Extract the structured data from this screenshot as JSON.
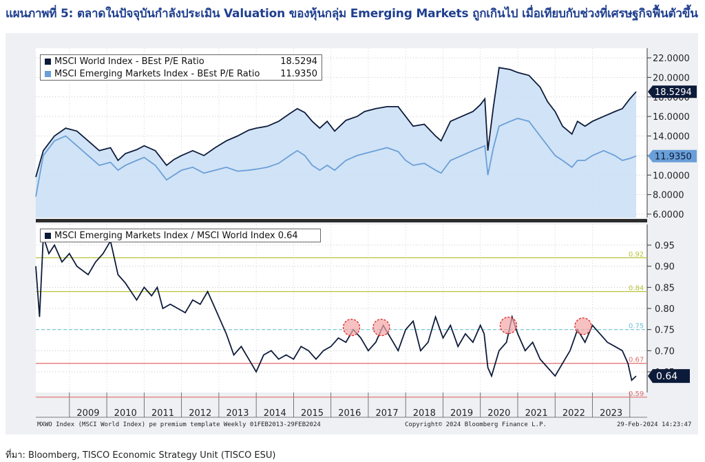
{
  "title": "แผนภาพที่ 5: ตลาดในปัจจุบันกำลังประเมิน Valuation ของหุ้นกลุ่ม Emerging Markets ถูกเกินไป เมื่อเทียบกับช่วงที่เศรษฐกิจฟื้นตัวขึ้น",
  "source": "ที่มา: Bloomberg, TISCO Economic Strategy Unit (TISCO ESU)",
  "footer": {
    "left": "MXWO Index (MSCI World Index) pe premium template  Weekly 01FEB2013-29FEB2024",
    "center": "Copyright© 2024 Bloomberg Finance L.P.",
    "right": "29-Feb-2024 14:23:47"
  },
  "colors": {
    "world": "#0d1b3a",
    "em": "#6a9fd8",
    "area": "#c9def5",
    "gold": "#b8c23a",
    "red": "#e06a6a",
    "teal": "#6ec0d8"
  },
  "chart_data": [
    {
      "type": "area",
      "legend": [
        {
          "name": "MSCI World Index - BEst P/E Ratio",
          "value": "18.5294"
        },
        {
          "name": "MSCI Emerging Markets Index - BEst P/E Ratio",
          "value": "11.9350"
        }
      ],
      "y_ticks": [
        "22.0000",
        "20.0000",
        "18.0000",
        "16.0000",
        "14.0000",
        "12.0000",
        "10.0000",
        "8.0000",
        "6.0000"
      ],
      "ylim": [
        6,
        22.5
      ],
      "xlim": [
        2008.1,
        2024.17
      ],
      "last_labels": {
        "world": "18.5294",
        "em": "11.9350"
      },
      "series": [
        {
          "name": "MSCI World Index - BEst P/E Ratio",
          "x": [
            2008.1,
            2008.3,
            2008.6,
            2008.9,
            2009.2,
            2009.5,
            2009.8,
            2010.1,
            2010.3,
            2010.5,
            2010.8,
            2011.0,
            2011.3,
            2011.6,
            2011.8,
            2012.0,
            2012.3,
            2012.6,
            2012.9,
            2013.2,
            2013.5,
            2013.8,
            2014.0,
            2014.3,
            2014.6,
            2014.9,
            2015.1,
            2015.3,
            2015.5,
            2015.7,
            2015.9,
            2016.1,
            2016.4,
            2016.7,
            2016.9,
            2017.2,
            2017.5,
            2017.8,
            2018.0,
            2018.2,
            2018.5,
            2018.8,
            2018.95,
            2019.2,
            2019.5,
            2019.8,
            2020.0,
            2020.12,
            2020.2,
            2020.35,
            2020.5,
            2020.8,
            2021.0,
            2021.3,
            2021.6,
            2021.8,
            2022.0,
            2022.2,
            2022.45,
            2022.6,
            2022.8,
            2023.0,
            2023.3,
            2023.6,
            2023.8,
            2024.0,
            2024.17
          ],
          "values": [
            9.8,
            12.5,
            14.0,
            14.8,
            14.5,
            13.5,
            12.5,
            12.8,
            11.5,
            12.2,
            12.6,
            13.0,
            12.5,
            11.0,
            11.6,
            12.0,
            12.5,
            12.0,
            12.8,
            13.5,
            14.0,
            14.6,
            14.8,
            15.0,
            15.5,
            16.3,
            16.8,
            16.4,
            15.5,
            14.8,
            15.5,
            14.5,
            15.6,
            16.0,
            16.5,
            16.8,
            17.0,
            17.0,
            16.0,
            15.0,
            15.2,
            14.0,
            13.5,
            15.5,
            16.0,
            16.5,
            17.2,
            17.8,
            12.5,
            17.0,
            21.0,
            20.8,
            20.5,
            20.2,
            19.0,
            17.5,
            16.5,
            15.0,
            14.2,
            15.5,
            15.0,
            15.5,
            16.0,
            16.5,
            16.8,
            17.8,
            18.53
          ]
        },
        {
          "name": "MSCI Emerging Markets Index - BEst P/E Ratio",
          "x": [
            2008.1,
            2008.3,
            2008.6,
            2008.9,
            2009.2,
            2009.5,
            2009.8,
            2010.1,
            2010.3,
            2010.5,
            2010.8,
            2011.0,
            2011.3,
            2011.6,
            2011.8,
            2012.0,
            2012.3,
            2012.6,
            2012.9,
            2013.2,
            2013.5,
            2013.8,
            2014.0,
            2014.3,
            2014.6,
            2014.9,
            2015.1,
            2015.3,
            2015.5,
            2015.7,
            2015.9,
            2016.1,
            2016.4,
            2016.7,
            2016.9,
            2017.2,
            2017.5,
            2017.8,
            2018.0,
            2018.2,
            2018.5,
            2018.8,
            2018.95,
            2019.2,
            2019.5,
            2019.8,
            2020.0,
            2020.12,
            2020.2,
            2020.35,
            2020.5,
            2020.8,
            2021.0,
            2021.3,
            2021.6,
            2021.8,
            2022.0,
            2022.2,
            2022.45,
            2022.6,
            2022.8,
            2023.0,
            2023.3,
            2023.6,
            2023.8,
            2024.0,
            2024.17
          ],
          "values": [
            7.8,
            12.0,
            13.5,
            14.0,
            13.0,
            12.0,
            11.0,
            11.3,
            10.5,
            11.0,
            11.5,
            11.8,
            11.0,
            9.5,
            10.0,
            10.5,
            10.8,
            10.2,
            10.5,
            10.8,
            10.4,
            10.5,
            10.6,
            10.8,
            11.2,
            12.0,
            12.5,
            12.0,
            11.0,
            10.5,
            11.0,
            10.5,
            11.5,
            12.0,
            12.2,
            12.5,
            12.8,
            12.4,
            11.5,
            11.0,
            11.2,
            10.5,
            10.2,
            11.5,
            12.0,
            12.5,
            12.8,
            13.0,
            10.0,
            12.8,
            15.0,
            15.5,
            15.8,
            15.5,
            14.0,
            13.0,
            12.0,
            11.5,
            10.8,
            11.5,
            11.5,
            12.0,
            12.5,
            12.0,
            11.5,
            11.7,
            11.94
          ]
        }
      ]
    },
    {
      "type": "line",
      "legend": [
        {
          "name": "MSCI Emerging Markets Index / MSCI World Index",
          "value": "0.64"
        }
      ],
      "y_ticks": [
        "0.95",
        "0.90",
        "0.85",
        "0.80",
        "0.75",
        "0.70",
        "0.65"
      ],
      "ylim": [
        0.585,
        0.99
      ],
      "xlim": [
        2008.1,
        2024.17
      ],
      "last_label": "0.64",
      "x_axis_labels": [
        "2009",
        "2010",
        "2011",
        "2012",
        "2013",
        "2014",
        "2015",
        "2016",
        "2017",
        "2018",
        "2019",
        "2020",
        "2021",
        "2022",
        "2023"
      ],
      "reference_lines": [
        {
          "value": 0.92,
          "label": "0.92",
          "color": "#b8c23a"
        },
        {
          "value": 0.84,
          "label": "0.84",
          "color": "#b8c23a"
        },
        {
          "value": 0.75,
          "label": "0.75",
          "color": "#6ec0d8"
        },
        {
          "value": 0.67,
          "label": "0.67",
          "color": "#e06a6a"
        },
        {
          "value": 0.59,
          "label": "0.59",
          "color": "#e06a6a"
        }
      ],
      "highlights": [
        {
          "x": 2016.55,
          "y": 0.755
        },
        {
          "x": 2017.35,
          "y": 0.755
        },
        {
          "x": 2020.75,
          "y": 0.76
        },
        {
          "x": 2022.75,
          "y": 0.758
        }
      ],
      "series": [
        {
          "name": "MSCI Emerging Markets Index / MSCI World Index",
          "x": [
            2008.1,
            2008.2,
            2008.3,
            2008.45,
            2008.6,
            2008.8,
            2009.0,
            2009.2,
            2009.5,
            2009.7,
            2009.9,
            2010.1,
            2010.3,
            2010.5,
            2010.8,
            2011.0,
            2011.2,
            2011.35,
            2011.5,
            2011.7,
            2011.9,
            2012.1,
            2012.3,
            2012.5,
            2012.7,
            2012.9,
            2013.0,
            2013.2,
            2013.4,
            2013.6,
            2013.8,
            2014.0,
            2014.2,
            2014.4,
            2014.6,
            2014.8,
            2015.0,
            2015.2,
            2015.4,
            2015.6,
            2015.8,
            2016.0,
            2016.2,
            2016.4,
            2016.6,
            2016.8,
            2017.0,
            2017.2,
            2017.4,
            2017.6,
            2017.8,
            2018.0,
            2018.2,
            2018.4,
            2018.6,
            2018.8,
            2019.0,
            2019.2,
            2019.4,
            2019.6,
            2019.8,
            2020.0,
            2020.1,
            2020.2,
            2020.3,
            2020.5,
            2020.7,
            2020.85,
            2021.0,
            2021.2,
            2021.4,
            2021.6,
            2021.8,
            2022.0,
            2022.2,
            2022.4,
            2022.6,
            2022.8,
            2023.0,
            2023.2,
            2023.4,
            2023.6,
            2023.8,
            2023.95,
            2024.05,
            2024.17
          ],
          "values": [
            0.9,
            0.78,
            0.97,
            0.93,
            0.95,
            0.91,
            0.93,
            0.9,
            0.88,
            0.91,
            0.93,
            0.96,
            0.88,
            0.86,
            0.82,
            0.85,
            0.83,
            0.85,
            0.8,
            0.81,
            0.8,
            0.79,
            0.82,
            0.81,
            0.84,
            0.8,
            0.78,
            0.74,
            0.69,
            0.71,
            0.68,
            0.65,
            0.69,
            0.7,
            0.68,
            0.69,
            0.68,
            0.71,
            0.7,
            0.68,
            0.7,
            0.71,
            0.73,
            0.72,
            0.75,
            0.73,
            0.7,
            0.72,
            0.76,
            0.73,
            0.7,
            0.75,
            0.77,
            0.7,
            0.72,
            0.78,
            0.73,
            0.76,
            0.71,
            0.74,
            0.72,
            0.76,
            0.74,
            0.66,
            0.64,
            0.7,
            0.72,
            0.78,
            0.74,
            0.7,
            0.72,
            0.68,
            0.66,
            0.64,
            0.67,
            0.7,
            0.75,
            0.72,
            0.76,
            0.74,
            0.72,
            0.71,
            0.7,
            0.67,
            0.63,
            0.64
          ]
        }
      ]
    }
  ]
}
